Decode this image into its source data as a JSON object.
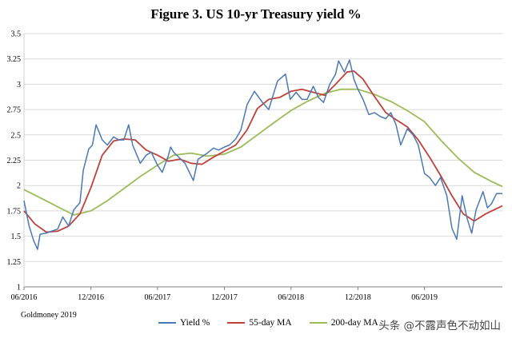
{
  "chart_data": {
    "type": "line",
    "title": "Figure 3. US 10-yr Treasury yield %",
    "xlabel": "",
    "ylabel": "",
    "x_ticks": [
      "06/2016",
      "12/2016",
      "06/2017",
      "12/2017",
      "06/2018",
      "12/2018",
      "06/2019"
    ],
    "x_range": [
      "2016-06-01",
      "2019-12-31"
    ],
    "y_ticks": [
      "1",
      "1.25",
      "1.5",
      "1.75",
      "2",
      "2.25",
      "2.5",
      "2.75",
      "3",
      "3.25",
      "3.5"
    ],
    "ylim": [
      1,
      3.5
    ],
    "grid": "horizontal",
    "legend_position": "bottom",
    "series": [
      {
        "name": "Yield %",
        "color": "#4a78b5",
        "points": [
          [
            "2016-06-01",
            1.85
          ],
          [
            "2016-06-15",
            1.6
          ],
          [
            "2016-06-27",
            1.46
          ],
          [
            "2016-07-08",
            1.37
          ],
          [
            "2016-07-15",
            1.52
          ],
          [
            "2016-08-01",
            1.53
          ],
          [
            "2016-08-15",
            1.55
          ],
          [
            "2016-09-01",
            1.57
          ],
          [
            "2016-09-15",
            1.69
          ],
          [
            "2016-10-01",
            1.6
          ],
          [
            "2016-10-15",
            1.76
          ],
          [
            "2016-11-01",
            1.83
          ],
          [
            "2016-11-10",
            2.15
          ],
          [
            "2016-11-25",
            2.36
          ],
          [
            "2016-12-05",
            2.4
          ],
          [
            "2016-12-15",
            2.6
          ],
          [
            "2017-01-01",
            2.45
          ],
          [
            "2017-01-15",
            2.4
          ],
          [
            "2017-02-01",
            2.48
          ],
          [
            "2017-02-15",
            2.45
          ],
          [
            "2017-03-01",
            2.45
          ],
          [
            "2017-03-14",
            2.6
          ],
          [
            "2017-03-25",
            2.4
          ],
          [
            "2017-04-15",
            2.22
          ],
          [
            "2017-05-01",
            2.3
          ],
          [
            "2017-05-15",
            2.33
          ],
          [
            "2017-06-01",
            2.2
          ],
          [
            "2017-06-14",
            2.13
          ],
          [
            "2017-07-01",
            2.3
          ],
          [
            "2017-07-07",
            2.38
          ],
          [
            "2017-07-15",
            2.33
          ],
          [
            "2017-08-01",
            2.27
          ],
          [
            "2017-08-15",
            2.22
          ],
          [
            "2017-09-07",
            2.05
          ],
          [
            "2017-09-20",
            2.26
          ],
          [
            "2017-10-15",
            2.32
          ],
          [
            "2017-11-01",
            2.37
          ],
          [
            "2017-11-15",
            2.35
          ],
          [
            "2017-12-01",
            2.38
          ],
          [
            "2017-12-15",
            2.4
          ],
          [
            "2018-01-01",
            2.46
          ],
          [
            "2018-01-15",
            2.55
          ],
          [
            "2018-02-01",
            2.8
          ],
          [
            "2018-02-21",
            2.93
          ],
          [
            "2018-03-15",
            2.82
          ],
          [
            "2018-04-01",
            2.75
          ],
          [
            "2018-04-25",
            3.03
          ],
          [
            "2018-05-17",
            3.1
          ],
          [
            "2018-05-30",
            2.85
          ],
          [
            "2018-06-15",
            2.92
          ],
          [
            "2018-07-01",
            2.85
          ],
          [
            "2018-07-15",
            2.85
          ],
          [
            "2018-08-01",
            2.98
          ],
          [
            "2018-08-15",
            2.87
          ],
          [
            "2018-08-29",
            2.82
          ],
          [
            "2018-09-15",
            3.0
          ],
          [
            "2018-10-01",
            3.1
          ],
          [
            "2018-10-09",
            3.23
          ],
          [
            "2018-10-25",
            3.12
          ],
          [
            "2018-11-08",
            3.24
          ],
          [
            "2018-11-20",
            3.05
          ],
          [
            "2018-12-01",
            2.95
          ],
          [
            "2018-12-15",
            2.85
          ],
          [
            "2018-12-31",
            2.7
          ],
          [
            "2019-01-15",
            2.72
          ],
          [
            "2019-02-01",
            2.68
          ],
          [
            "2019-02-15",
            2.66
          ],
          [
            "2019-03-01",
            2.72
          ],
          [
            "2019-03-15",
            2.6
          ],
          [
            "2019-03-28",
            2.4
          ],
          [
            "2019-04-15",
            2.56
          ],
          [
            "2019-05-01",
            2.5
          ],
          [
            "2019-05-15",
            2.4
          ],
          [
            "2019-06-01",
            2.12
          ],
          [
            "2019-06-15",
            2.08
          ],
          [
            "2019-07-01",
            2.0
          ],
          [
            "2019-07-15",
            2.08
          ],
          [
            "2019-08-01",
            1.9
          ],
          [
            "2019-08-15",
            1.58
          ],
          [
            "2019-08-28",
            1.47
          ],
          [
            "2019-09-12",
            1.9
          ],
          [
            "2019-09-25",
            1.68
          ],
          [
            "2019-10-08",
            1.53
          ],
          [
            "2019-10-20",
            1.76
          ],
          [
            "2019-11-08",
            1.94
          ],
          [
            "2019-11-20",
            1.78
          ],
          [
            "2019-12-01",
            1.82
          ],
          [
            "2019-12-15",
            1.92
          ],
          [
            "2019-12-31",
            1.92
          ]
        ]
      },
      {
        "name": "55-day MA",
        "color": "#c0413a",
        "points": [
          [
            "2016-06-01",
            1.75
          ],
          [
            "2016-07-01",
            1.62
          ],
          [
            "2016-08-01",
            1.54
          ],
          [
            "2016-09-01",
            1.55
          ],
          [
            "2016-10-01",
            1.6
          ],
          [
            "2016-11-01",
            1.72
          ],
          [
            "2016-12-01",
            1.98
          ],
          [
            "2017-01-01",
            2.3
          ],
          [
            "2017-02-01",
            2.44
          ],
          [
            "2017-03-01",
            2.46
          ],
          [
            "2017-04-01",
            2.45
          ],
          [
            "2017-05-01",
            2.35
          ],
          [
            "2017-06-01",
            2.3
          ],
          [
            "2017-07-01",
            2.24
          ],
          [
            "2017-08-01",
            2.26
          ],
          [
            "2017-09-01",
            2.22
          ],
          [
            "2017-10-01",
            2.21
          ],
          [
            "2017-11-01",
            2.28
          ],
          [
            "2017-12-01",
            2.34
          ],
          [
            "2018-01-01",
            2.4
          ],
          [
            "2018-02-01",
            2.55
          ],
          [
            "2018-03-01",
            2.76
          ],
          [
            "2018-04-01",
            2.85
          ],
          [
            "2018-05-01",
            2.87
          ],
          [
            "2018-06-01",
            2.93
          ],
          [
            "2018-07-01",
            2.95
          ],
          [
            "2018-08-01",
            2.92
          ],
          [
            "2018-09-01",
            2.89
          ],
          [
            "2018-10-01",
            3.0
          ],
          [
            "2018-11-01",
            3.12
          ],
          [
            "2018-11-20",
            3.13
          ],
          [
            "2018-12-15",
            3.05
          ],
          [
            "2019-01-15",
            2.88
          ],
          [
            "2019-02-15",
            2.72
          ],
          [
            "2019-03-15",
            2.65
          ],
          [
            "2019-04-15",
            2.58
          ],
          [
            "2019-05-15",
            2.45
          ],
          [
            "2019-06-15",
            2.28
          ],
          [
            "2019-07-15",
            2.1
          ],
          [
            "2019-08-15",
            1.9
          ],
          [
            "2019-09-15",
            1.72
          ],
          [
            "2019-10-15",
            1.65
          ],
          [
            "2019-11-15",
            1.72
          ],
          [
            "2019-12-31",
            1.8
          ]
        ]
      },
      {
        "name": "200-day MA",
        "color": "#9bbb59",
        "points": [
          [
            "2016-06-01",
            1.96
          ],
          [
            "2016-07-15",
            1.88
          ],
          [
            "2016-09-01",
            1.79
          ],
          [
            "2016-10-15",
            1.71
          ],
          [
            "2016-12-01",
            1.75
          ],
          [
            "2017-01-15",
            1.85
          ],
          [
            "2017-03-01",
            1.97
          ],
          [
            "2017-04-15",
            2.09
          ],
          [
            "2017-06-01",
            2.2
          ],
          [
            "2017-07-15",
            2.3
          ],
          [
            "2017-09-01",
            2.32
          ],
          [
            "2017-10-15",
            2.29
          ],
          [
            "2017-12-01",
            2.31
          ],
          [
            "2018-01-15",
            2.38
          ],
          [
            "2018-03-01",
            2.5
          ],
          [
            "2018-04-15",
            2.62
          ],
          [
            "2018-06-01",
            2.74
          ],
          [
            "2018-07-15",
            2.83
          ],
          [
            "2018-09-01",
            2.91
          ],
          [
            "2018-10-15",
            2.95
          ],
          [
            "2018-12-01",
            2.95
          ],
          [
            "2019-01-15",
            2.9
          ],
          [
            "2019-03-01",
            2.83
          ],
          [
            "2019-04-15",
            2.74
          ],
          [
            "2019-06-01",
            2.63
          ],
          [
            "2019-07-15",
            2.45
          ],
          [
            "2019-09-01",
            2.27
          ],
          [
            "2019-10-15",
            2.13
          ],
          [
            "2019-12-01",
            2.04
          ],
          [
            "2019-12-31",
            1.99
          ]
        ]
      }
    ]
  },
  "source_note": "Goldmoney 2019",
  "watermark": "头条 @不露声色不动如山"
}
